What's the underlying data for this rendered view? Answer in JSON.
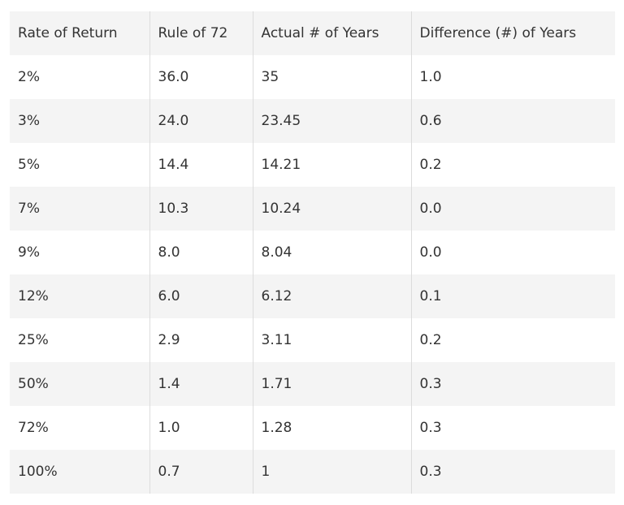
{
  "table": {
    "header": [
      "Rate of Return",
      "Rule of 72",
      "Actual # of Years",
      "Difference (#) of Years"
    ],
    "rows": [
      [
        "2%",
        "36.0",
        "35",
        "1.0"
      ],
      [
        "3%",
        "24.0",
        "23.45",
        "0.6"
      ],
      [
        "5%",
        "14.4",
        "14.21",
        "0.2"
      ],
      [
        "7%",
        "10.3",
        "10.24",
        "0.0"
      ],
      [
        "9%",
        "8.0",
        "8.04",
        "0.0"
      ],
      [
        "12%",
        "6.0",
        "6.12",
        "0.1"
      ],
      [
        "25%",
        "2.9",
        "3.11",
        "0.2"
      ],
      [
        "50%",
        "1.4",
        "1.71",
        "0.3"
      ],
      [
        "72%",
        "1.0",
        "1.28",
        "0.3"
      ],
      [
        "100%",
        "0.7",
        "1",
        "0.3"
      ]
    ]
  }
}
